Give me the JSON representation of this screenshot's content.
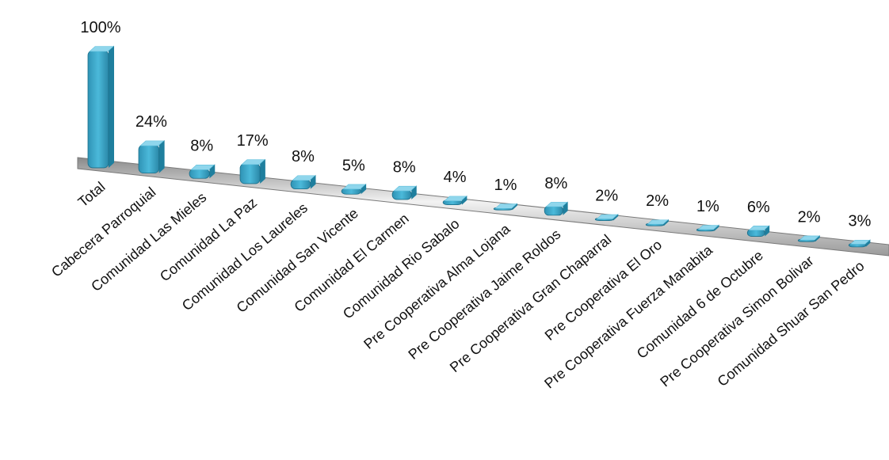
{
  "chart_data": {
    "type": "bar",
    "categories": [
      "Total",
      "Cabecera Parroquial",
      "Comunidad Las Mieles",
      "Comunidad La Paz",
      "Comunidad Los Laureles",
      "Comunidad San Vicente",
      "Comunidad El Carmen",
      "Comunidad Rio Sabalo",
      "Pre Cooperativa Alma Lojana",
      "Pre Cooperativa Jaime Roldos",
      "Pre Cooperativa Gran Chaparral",
      "Pre Cooperativa El Oro",
      "Pre Cooperativa Fuerza Manabita",
      "Comunidad 6 de Octubre",
      "Pre Cooperativa Simon Bolivar",
      "Comunidad Shuar San Pedro"
    ],
    "values": [
      100,
      24,
      8,
      17,
      8,
      5,
      8,
      4,
      1,
      8,
      2,
      2,
      1,
      6,
      2,
      3
    ],
    "value_labels": [
      "100%",
      "24%",
      "8%",
      "17%",
      "8%",
      "5%",
      "8%",
      "4%",
      "1%",
      "8%",
      "2%",
      "2%",
      "1%",
      "6%",
      "2%",
      "3%"
    ],
    "title": "",
    "xlabel": "",
    "ylabel": "",
    "ylim": [
      0,
      100
    ],
    "grid": false,
    "legend": "none",
    "style": "3d-perspective-column",
    "colors": {
      "bar_top": "#8fd6ec",
      "bar_front": "#38a6c8",
      "bar_side": "#1f7f9e",
      "floor": "#b9b9b9"
    }
  }
}
